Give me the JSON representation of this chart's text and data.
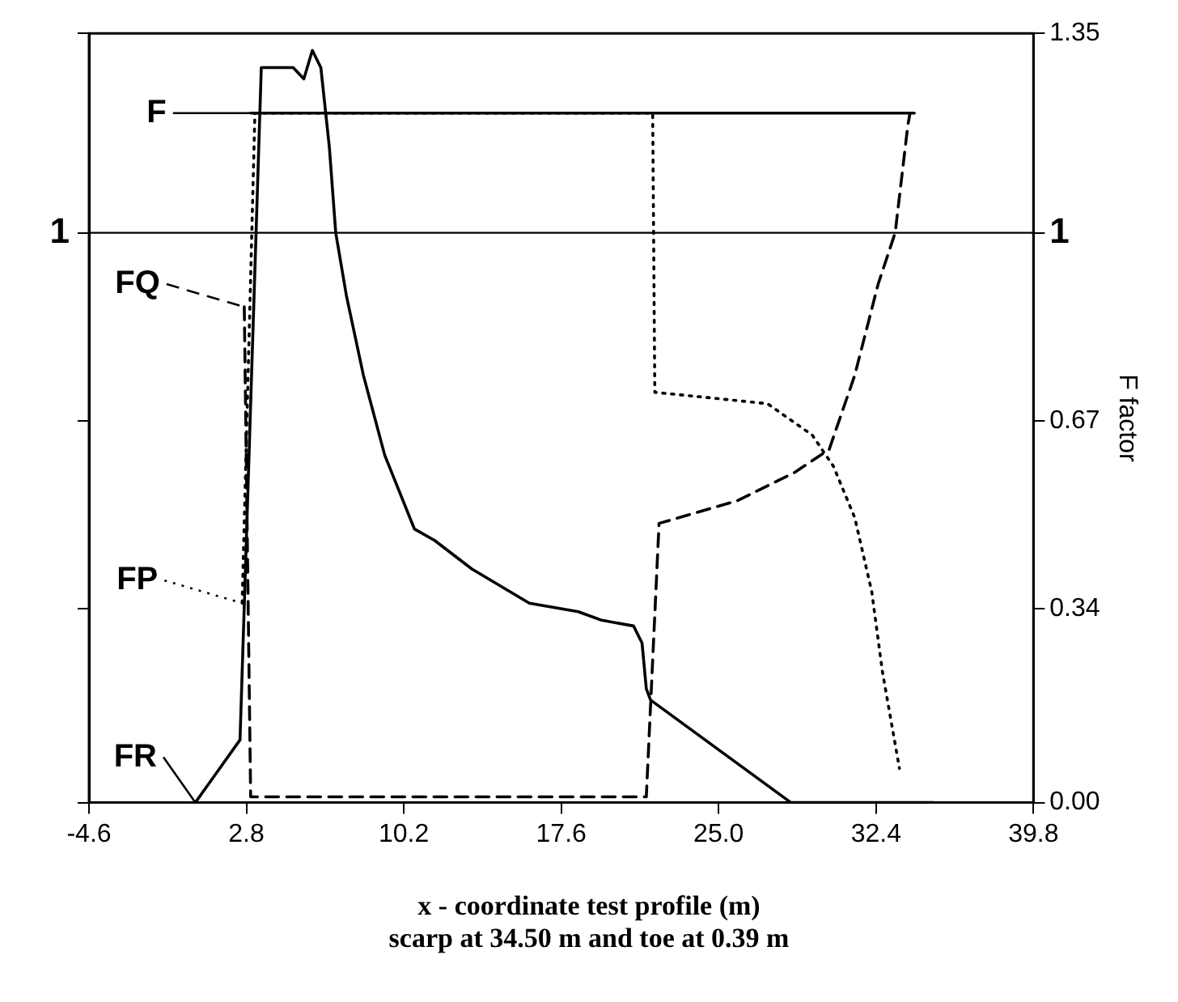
{
  "chart_data": {
    "type": "line",
    "ylabel": "F factor",
    "xlabel": "x - coordinate test profile (m)",
    "annotations": [
      "scarp at 34.50 m and toe at 0.39 m"
    ],
    "xlim": [
      -4.6,
      39.8
    ],
    "xticks": [
      -4.6,
      2.8,
      10.2,
      17.6,
      {
        "value": 25.0,
        "label": "25.0"
      },
      32.4,
      39.8
    ],
    "ylim": [
      0,
      1.35
    ],
    "yticks": [
      {
        "value": 0,
        "label": "0.00"
      },
      0.34,
      0.67,
      1,
      1.35
    ],
    "ref_lines": [
      {
        "axis": "y",
        "value": 1,
        "label": "1",
        "color": "#000000"
      }
    ],
    "grid": false,
    "legend": "left",
    "marker": "none",
    "series": [
      {
        "name": "F",
        "color": "#000000",
        "line_style": "solid",
        "x": [
          3.0,
          34.2
        ],
        "values": [
          1.21,
          1.21
        ]
      },
      {
        "name": "FQ",
        "color": "#000000",
        "line_style": "dashed",
        "x": [
          2.7,
          3.0,
          3.2,
          21.3,
          21.6,
          22.2,
          25.9,
          28.6,
          30.2,
          31.4,
          32.5,
          33.3,
          33.9,
          34.0
        ],
        "values": [
          0.87,
          0.01,
          0.01,
          0.01,
          0.01,
          0.49,
          0.53,
          0.58,
          0.62,
          0.75,
          0.91,
          1.0,
          1.19,
          1.21
        ]
      },
      {
        "name": "FP",
        "color": "#000000",
        "line_style": "dotted",
        "x": [
          2.6,
          3.2,
          21.9,
          22.0,
          24.7,
          27.3,
          29.4,
          30.4,
          31.4,
          32.2,
          32.7,
          33.5
        ],
        "values": [
          0.35,
          1.21,
          1.21,
          0.72,
          0.71,
          0.7,
          0.645,
          0.59,
          0.5,
          0.37,
          0.23,
          0.06
        ]
      },
      {
        "name": "FR",
        "color": "#000000",
        "line_style": "solid",
        "x": [
          0.4,
          2.5,
          3.5,
          3.9,
          5.0,
          5.5,
          5.9,
          6.3,
          6.7,
          7.0,
          7.5,
          8.3,
          9.3,
          10.7,
          11.65,
          13.4,
          16.1,
          18.4,
          19.5,
          21.0,
          21.4,
          21.6,
          21.8,
          28.4,
          35.1
        ],
        "values": [
          0,
          0.11,
          1.29,
          1.29,
          1.29,
          1.27,
          1.32,
          1.29,
          1.15,
          1.0,
          0.89,
          0.75,
          0.61,
          0.48,
          0.46,
          0.41,
          0.35,
          0.335,
          0.32,
          0.31,
          0.28,
          0.2,
          0.18,
          0,
          0
        ]
      }
    ]
  }
}
